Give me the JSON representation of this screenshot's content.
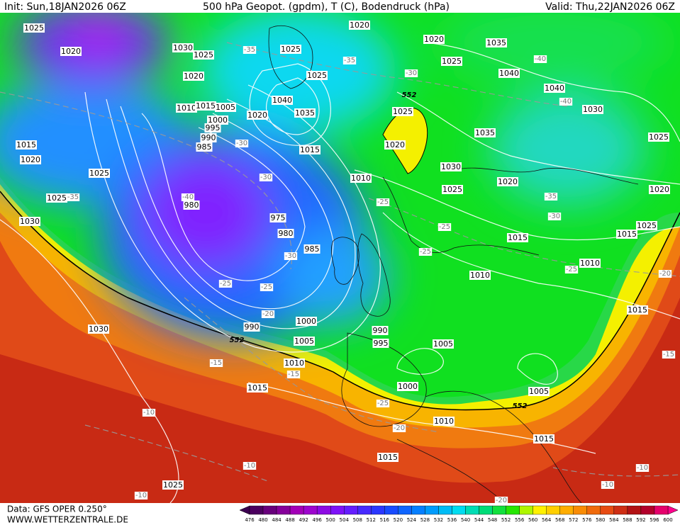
{
  "header": {
    "init": "Init: Sun,18JAN2026 06Z",
    "title": "500 hPa Geopot. (gpdm), T (C), Bodendruck (hPa)",
    "valid": "Valid: Thu,22JAN2026 06Z"
  },
  "footer": {
    "source": "Data: GFS OPER 0.250°",
    "website": "WWW.WETTERZENTRALE.DE"
  },
  "colorbar": {
    "labels": [
      476,
      480,
      484,
      488,
      492,
      496,
      500,
      504,
      508,
      512,
      516,
      520,
      524,
      528,
      532,
      536,
      540,
      544,
      548,
      552,
      556,
      560,
      564,
      568,
      572,
      576,
      580,
      584,
      588,
      592,
      596,
      600
    ]
  },
  "map": {
    "pressure_labels": [
      "1025",
      "1020",
      "1030",
      "1025",
      "1020",
      "1020",
      "1025",
      "1025",
      "1040",
      "1035",
      "1020",
      "1010",
      "1015",
      "1005",
      "1000",
      "995",
      "990",
      "985",
      "1015",
      "1020",
      "1025",
      "1025",
      "1030",
      "980",
      "975",
      "980",
      "985",
      "1015",
      "1010",
      "1020",
      "1035",
      "1025",
      "1040",
      "1040",
      "1030",
      "1025",
      "1020",
      "1035",
      "1030",
      "1025",
      "1020",
      "1025",
      "1020",
      "1015",
      "1015",
      "1025",
      "1010",
      "1010",
      "1015",
      "1030",
      "990",
      "1000",
      "990",
      "1005",
      "995",
      "1005",
      "1010",
      "1015",
      "1000",
      "1005",
      "1010",
      "1015",
      "1015",
      "1025"
    ],
    "temperature_labels": [
      "-35",
      "-35",
      "-30",
      "-40",
      "-40",
      "-30",
      "-30",
      "-40",
      "-35",
      "-35",
      "-30",
      "-25",
      "-25",
      "-25",
      "-30",
      "-25",
      "-25",
      "-20",
      "-25",
      "-20",
      "-15",
      "-15",
      "-25",
      "-20",
      "-10",
      "-10",
      "-10",
      "-10",
      "-10",
      "-15",
      "-20"
    ],
    "geopotential_labels": [
      "552",
      "552",
      "552"
    ]
  }
}
